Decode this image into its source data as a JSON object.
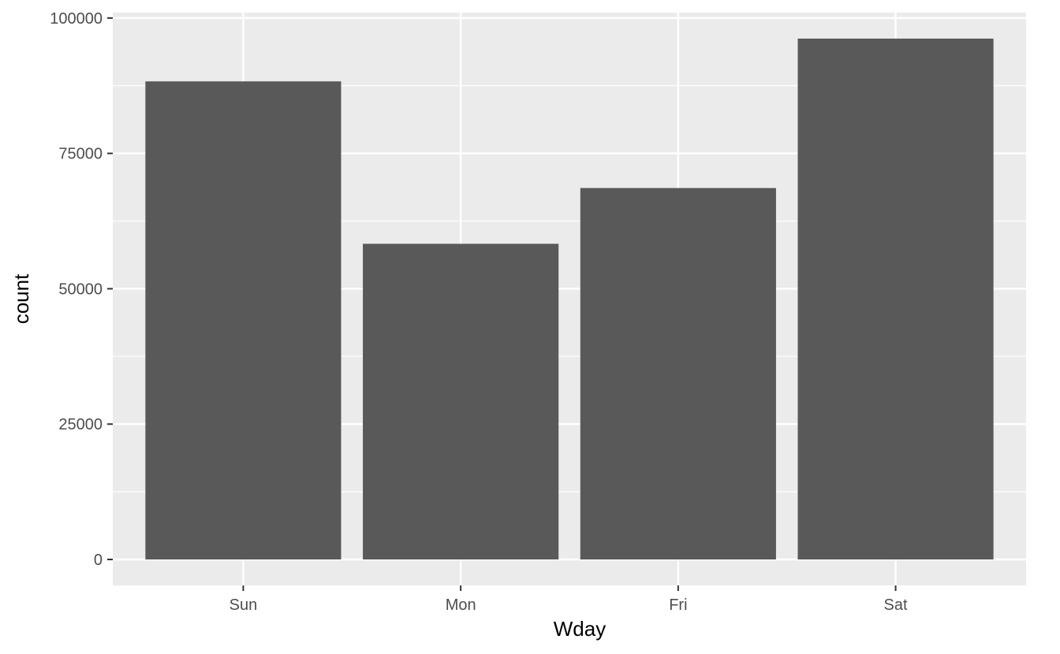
{
  "chart_data": {
    "type": "bar",
    "categories": [
      "Sun",
      "Mon",
      "Fri",
      "Sat"
    ],
    "values": [
      88300,
      58300,
      68600,
      96200
    ],
    "xlabel": "Wday",
    "ylabel": "count",
    "ylim": [
      -4800,
      101000
    ],
    "yticks": [
      0,
      25000,
      50000,
      75000,
      100000
    ],
    "ytick_labels": [
      "0",
      "25000",
      "50000",
      "75000",
      "100000"
    ],
    "grid": true,
    "legend": "none",
    "colors": {
      "bar": "#595959",
      "panel": "#ebebeb",
      "grid": "#ffffff",
      "tick": "#333333"
    }
  }
}
